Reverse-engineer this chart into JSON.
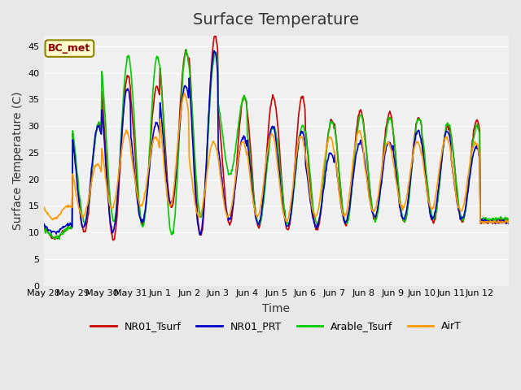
{
  "title": "Surface Temperature",
  "ylabel": "Surface Temperature (C)",
  "xlabel": "Time",
  "annotation": "BC_met",
  "ylim": [
    0,
    47
  ],
  "yticks": [
    0,
    5,
    10,
    15,
    20,
    25,
    30,
    35,
    40,
    45
  ],
  "x_labels": [
    "May 28",
    "May 29",
    "May 30",
    "May 31",
    "Jun 1",
    "Jun 2",
    "Jun 3",
    "Jun 4",
    "Jun 5",
    "Jun 6",
    "Jun 7",
    "Jun 8",
    "Jun 9",
    "Jun 10",
    "Jun 11",
    "Jun 12"
  ],
  "colors": {
    "NR01_Tsurf": "#cc0000",
    "NR01_PRT": "#0000cc",
    "Arable_Tsurf": "#00cc00",
    "AirT": "#ff9900"
  },
  "bg_color": "#e8e8e8",
  "plot_bg": "#f0f0f0",
  "grid_color": "#ffffff",
  "title_fontsize": 14,
  "label_fontsize": 10,
  "tick_fontsize": 8
}
